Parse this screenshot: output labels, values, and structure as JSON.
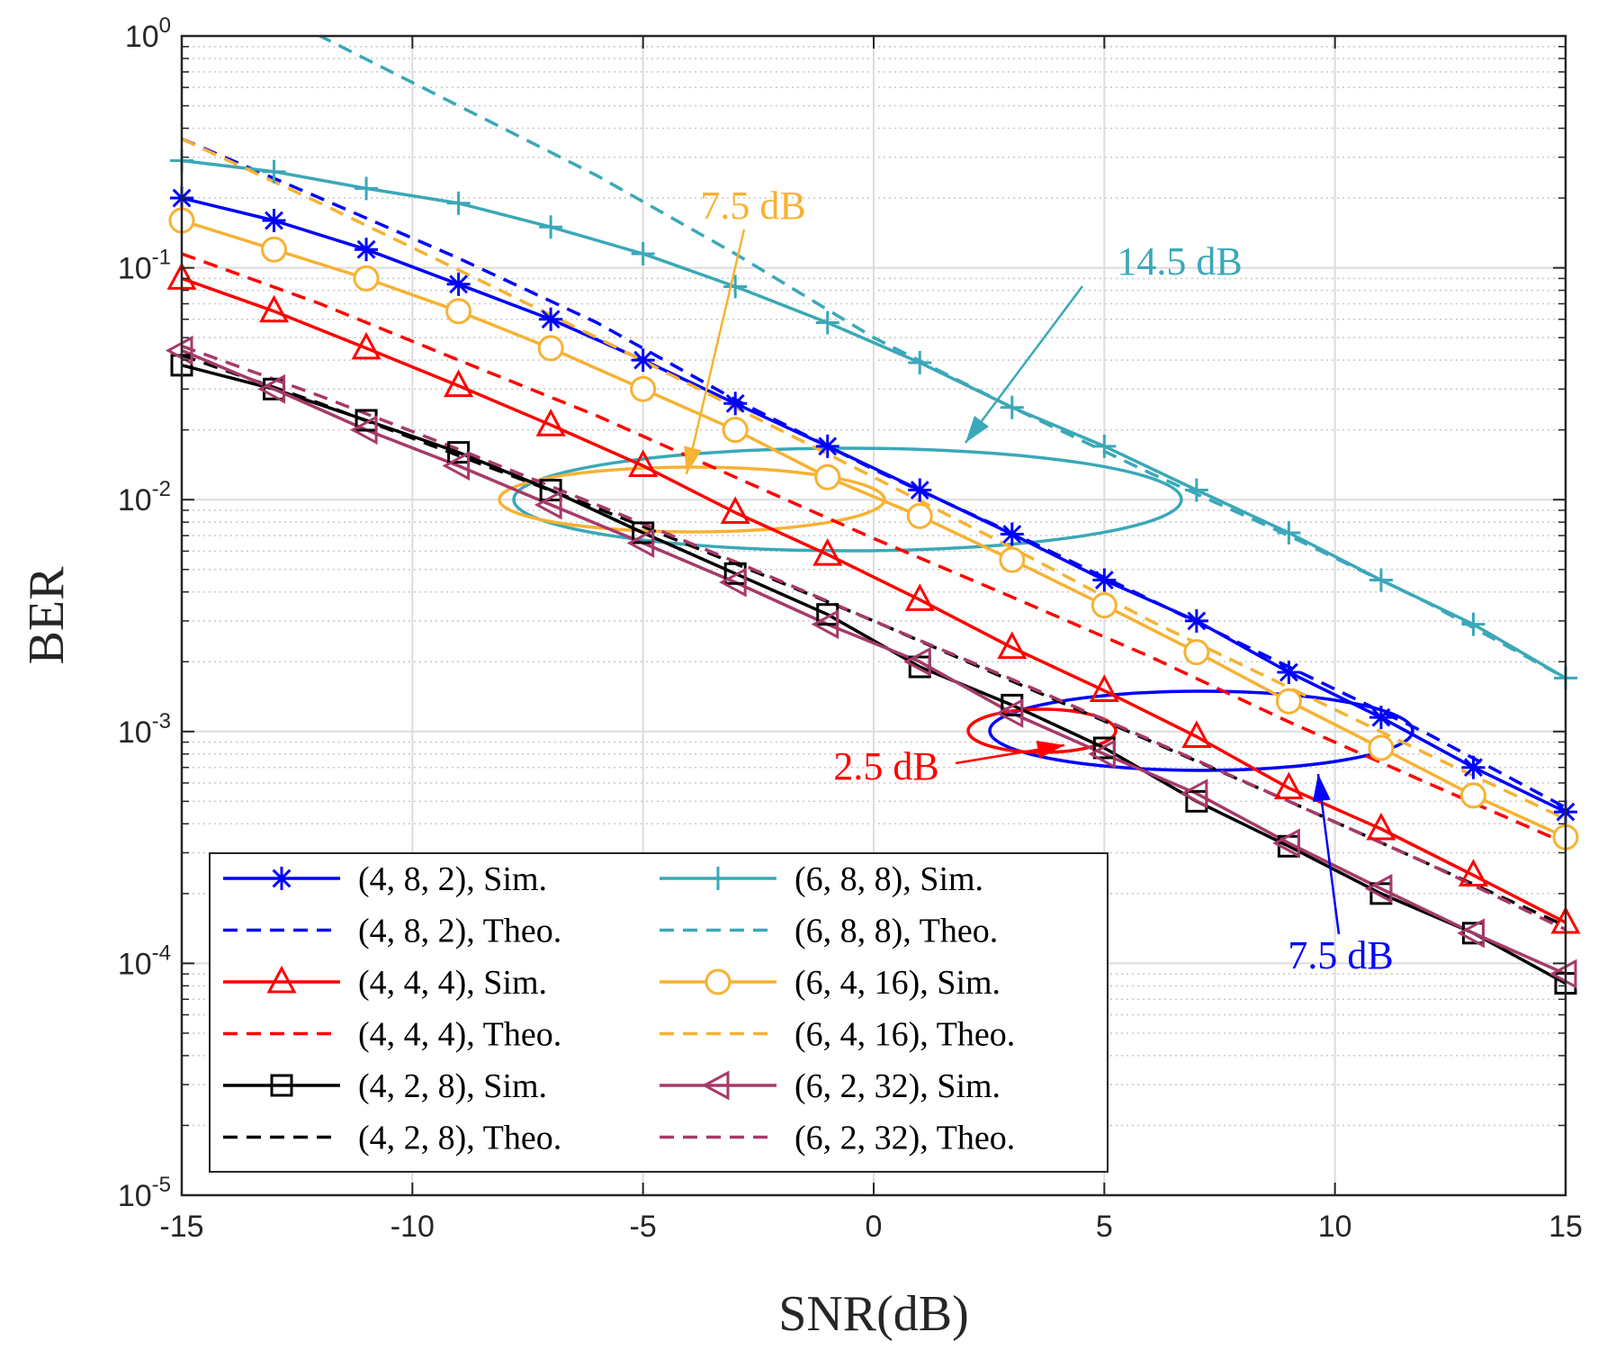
{
  "chart_data": {
    "type": "line",
    "xlabel": "SNR(dB)",
    "ylabel": "BER",
    "xlim": [
      -15,
      15
    ],
    "ylim": [
      1e-05,
      1
    ],
    "yscale": "log",
    "grid": true,
    "x_ticks": [
      "-15",
      "-10",
      "-5",
      "0",
      "5",
      "10",
      "15"
    ],
    "y_ticks": [
      {
        "base": "10",
        "exp": "0"
      },
      {
        "base": "10",
        "exp": "-1"
      },
      {
        "base": "10",
        "exp": "-2"
      },
      {
        "base": "10",
        "exp": "-3"
      },
      {
        "base": "10",
        "exp": "-4"
      },
      {
        "base": "10",
        "exp": "-5"
      }
    ],
    "legend_position": "bottom-left",
    "x": [
      -15,
      -13,
      -11,
      -9,
      -7,
      -5,
      -3,
      -1,
      1,
      3,
      5,
      7,
      9,
      11,
      13,
      15
    ],
    "series": [
      {
        "name": "(4, 8, 2), Sim.",
        "color": "#0000ff",
        "style": "solid",
        "marker": "asterisk",
        "values": [
          0.2,
          0.16,
          0.12,
          0.085,
          0.06,
          0.04,
          0.026,
          0.017,
          0.011,
          0.0071,
          0.0045,
          0.003,
          0.0018,
          0.00115,
          0.0007,
          0.00045
        ]
      },
      {
        "name": "(4, 8, 2), Theo.",
        "color": "#0000ff",
        "style": "dashed",
        "marker": "none",
        "x": [
          -15,
          -12,
          -9,
          -6,
          -3,
          0,
          3,
          6,
          9,
          12,
          15
        ],
        "values": [
          0.36,
          0.2,
          0.11,
          0.058,
          0.027,
          0.0135,
          0.0072,
          0.0037,
          0.0019,
          0.00098,
          0.00047
        ]
      },
      {
        "name": "(4, 4, 4), Sim.",
        "color": "#ff0000",
        "style": "solid",
        "marker": "triangle-up",
        "values": [
          0.09,
          0.065,
          0.045,
          0.031,
          0.021,
          0.014,
          0.0088,
          0.0058,
          0.0037,
          0.0023,
          0.0015,
          0.00095,
          0.00057,
          0.00038,
          0.00024,
          0.00015
        ]
      },
      {
        "name": "(4, 4, 4), Theo.",
        "color": "#ff0000",
        "style": "dashed",
        "marker": "none",
        "x": [
          -15,
          -12,
          -9,
          -6,
          -3,
          0,
          3,
          6,
          9,
          12,
          15
        ],
        "values": [
          0.115,
          0.07,
          0.04,
          0.023,
          0.0125,
          0.0068,
          0.0038,
          0.0021,
          0.0011,
          0.0006,
          0.00033
        ]
      },
      {
        "name": "(4, 2, 8), Sim.",
        "color": "#000000",
        "style": "solid",
        "marker": "square",
        "values": [
          0.038,
          0.03,
          0.022,
          0.016,
          0.011,
          0.0072,
          0.0048,
          0.0032,
          0.0019,
          0.0013,
          0.00085,
          0.0005,
          0.00032,
          0.0002,
          0.000135,
          8.2e-05
        ]
      },
      {
        "name": "(4, 2, 8), Theo.",
        "color": "#000000",
        "style": "dashed",
        "marker": "none",
        "x": [
          -15,
          -12,
          -9,
          -6,
          -3,
          0,
          3,
          6,
          9,
          12,
          15
        ],
        "values": [
          0.042,
          0.026,
          0.0155,
          0.0092,
          0.0053,
          0.003,
          0.00165,
          0.00091,
          0.0005,
          0.00027,
          0.000145
        ]
      },
      {
        "name": "(6, 8, 8), Sim.",
        "color": "#3aa8b8",
        "style": "solid",
        "marker": "plus",
        "values": [
          0.29,
          0.26,
          0.22,
          0.19,
          0.15,
          0.115,
          0.083,
          0.058,
          0.039,
          0.025,
          0.017,
          0.011,
          0.0072,
          0.0045,
          0.0029,
          0.0017
        ]
      },
      {
        "name": "(6, 8, 8), Theo.",
        "color": "#3aa8b8",
        "style": "dashed",
        "marker": "none",
        "x": [
          -15,
          -12,
          -9,
          -6,
          -3,
          0,
          3,
          6,
          9,
          12,
          15
        ],
        "values": [
          2.5,
          1.0,
          0.5,
          0.25,
          0.115,
          0.05,
          0.025,
          0.013,
          0.007,
          0.0036,
          0.0017
        ]
      },
      {
        "name": "(6, 4, 16), Sim.",
        "color": "#f7b233",
        "style": "solid",
        "marker": "circle",
        "values": [
          0.16,
          0.12,
          0.09,
          0.065,
          0.045,
          0.03,
          0.02,
          0.0125,
          0.0085,
          0.0055,
          0.0035,
          0.0022,
          0.00135,
          0.00085,
          0.00053,
          0.00035
        ]
      },
      {
        "name": "(6, 4, 16), Theo.",
        "color": "#f7b233",
        "style": "dashed",
        "marker": "none",
        "x": [
          -15,
          -12,
          -9,
          -6,
          -3,
          0,
          3,
          6,
          9,
          12,
          15
        ],
        "values": [
          0.36,
          0.19,
          0.098,
          0.05,
          0.025,
          0.0125,
          0.0062,
          0.003,
          0.00155,
          0.0008,
          0.00042
        ]
      },
      {
        "name": "(6, 2, 32), Sim.",
        "color": "#a63a6a",
        "style": "solid",
        "marker": "triangle-left",
        "values": [
          0.044,
          0.03,
          0.02,
          0.014,
          0.0095,
          0.0065,
          0.0044,
          0.0029,
          0.002,
          0.0012,
          0.0008,
          0.00054,
          0.00033,
          0.00021,
          0.000135,
          9e-05
        ]
      },
      {
        "name": "(6, 2, 32), Theo.",
        "color": "#a63a6a",
        "style": "dashed",
        "marker": "none",
        "x": [
          -15,
          -12,
          -9,
          -6,
          -3,
          0,
          3,
          6,
          9,
          12,
          15
        ],
        "values": [
          0.046,
          0.028,
          0.0165,
          0.0095,
          0.0054,
          0.003,
          0.00168,
          0.00092,
          0.0005,
          0.00027,
          0.00014
        ]
      }
    ],
    "annotations": [
      {
        "text": "7.5 dB",
        "color": "#f7b233"
      },
      {
        "text": "14.5 dB",
        "color": "#3aa8b8"
      },
      {
        "text": "2.5 dB",
        "color": "#ff0000"
      },
      {
        "text": "7.5 dB",
        "color": "#0000ff"
      }
    ]
  }
}
